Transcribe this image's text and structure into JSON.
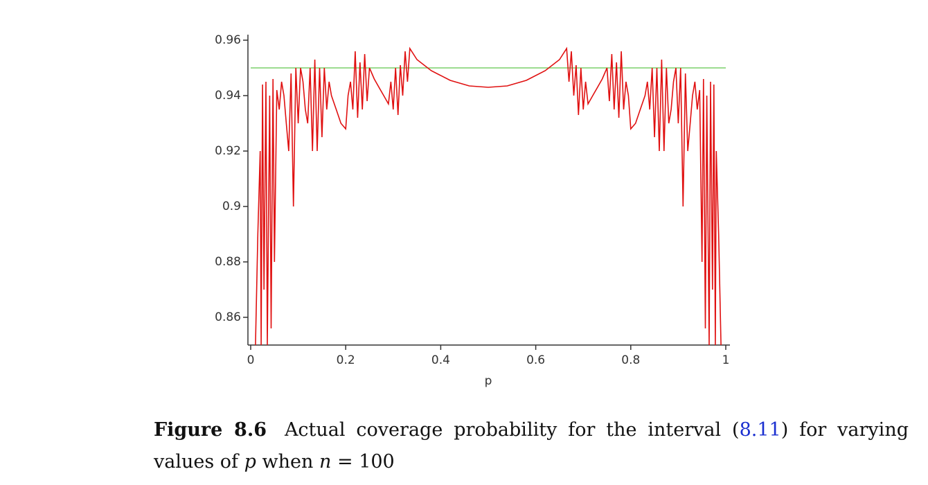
{
  "chart_data": {
    "type": "line",
    "xlabel": "p",
    "xlim": [
      0,
      1
    ],
    "xticks": [
      0,
      0.2,
      0.4,
      0.6,
      0.8,
      1
    ],
    "ylim": [
      0.85,
      0.96
    ],
    "yticks": [
      0.86,
      0.88,
      0.9,
      0.92,
      0.94,
      0.96
    ],
    "series": [
      {
        "color": "#e01010",
        "x": [
          0.01,
          0.015,
          0.02,
          0.022,
          0.025,
          0.028,
          0.032,
          0.035,
          0.04,
          0.043,
          0.047,
          0.05,
          0.055,
          0.06,
          0.065,
          0.07,
          0.075,
          0.08,
          0.085,
          0.09,
          0.095,
          0.1,
          0.105,
          0.11,
          0.115,
          0.12,
          0.125,
          0.13,
          0.135,
          0.14,
          0.145,
          0.15,
          0.155,
          0.16,
          0.165,
          0.17,
          0.18,
          0.19,
          0.2,
          0.205,
          0.21,
          0.215,
          0.22,
          0.225,
          0.23,
          0.235,
          0.24,
          0.245,
          0.25,
          0.26,
          0.27,
          0.28,
          0.29,
          0.295,
          0.3,
          0.305,
          0.31,
          0.315,
          0.32,
          0.325,
          0.33,
          0.335,
          0.35,
          0.38,
          0.42,
          0.46,
          0.5,
          0.54,
          0.58,
          0.62,
          0.65,
          0.665,
          0.67,
          0.675,
          0.68,
          0.685,
          0.69,
          0.695,
          0.7,
          0.705,
          0.71,
          0.72,
          0.73,
          0.74,
          0.75,
          0.755,
          0.76,
          0.765,
          0.77,
          0.775,
          0.78,
          0.785,
          0.79,
          0.795,
          0.8,
          0.81,
          0.82,
          0.83,
          0.835,
          0.84,
          0.845,
          0.85,
          0.855,
          0.86,
          0.865,
          0.87,
          0.875,
          0.88,
          0.885,
          0.89,
          0.895,
          0.9,
          0.905,
          0.91,
          0.915,
          0.92,
          0.925,
          0.93,
          0.935,
          0.94,
          0.945,
          0.95,
          0.953,
          0.957,
          0.96,
          0.965,
          0.968,
          0.972,
          0.975,
          0.978,
          0.98,
          0.985,
          0.99
        ],
        "values": [
          0.85,
          0.89,
          0.92,
          0.85,
          0.944,
          0.87,
          0.945,
          0.85,
          0.94,
          0.856,
          0.946,
          0.88,
          0.942,
          0.935,
          0.945,
          0.94,
          0.93,
          0.92,
          0.948,
          0.9,
          0.95,
          0.93,
          0.95,
          0.945,
          0.935,
          0.93,
          0.95,
          0.92,
          0.953,
          0.92,
          0.95,
          0.925,
          0.95,
          0.935,
          0.945,
          0.94,
          0.935,
          0.93,
          0.928,
          0.94,
          0.945,
          0.935,
          0.956,
          0.932,
          0.952,
          0.935,
          0.955,
          0.938,
          0.95,
          0.946,
          0.943,
          0.94,
          0.937,
          0.945,
          0.935,
          0.95,
          0.933,
          0.951,
          0.94,
          0.956,
          0.945,
          0.957,
          0.953,
          0.949,
          0.9455,
          0.9435,
          0.943,
          0.9435,
          0.9455,
          0.949,
          0.953,
          0.957,
          0.945,
          0.956,
          0.94,
          0.951,
          0.933,
          0.95,
          0.935,
          0.945,
          0.937,
          0.94,
          0.943,
          0.946,
          0.95,
          0.938,
          0.955,
          0.935,
          0.952,
          0.932,
          0.956,
          0.935,
          0.945,
          0.94,
          0.928,
          0.93,
          0.935,
          0.94,
          0.945,
          0.935,
          0.95,
          0.925,
          0.95,
          0.92,
          0.953,
          0.92,
          0.95,
          0.93,
          0.935,
          0.945,
          0.95,
          0.93,
          0.95,
          0.9,
          0.948,
          0.92,
          0.93,
          0.94,
          0.945,
          0.935,
          0.942,
          0.88,
          0.946,
          0.856,
          0.94,
          0.85,
          0.945,
          0.87,
          0.944,
          0.85,
          0.92,
          0.89,
          0.85
        ]
      },
      {
        "color": "#7ccf6a",
        "x": [
          0,
          1
        ],
        "values": [
          0.95,
          0.95
        ]
      }
    ]
  },
  "caption": {
    "label": "Figure 8.6",
    "parts": [
      "Actual coverage probability for the interval (",
      "8.11",
      ") for varying values of",
      "p",
      "when",
      "n",
      "= 100"
    ]
  }
}
